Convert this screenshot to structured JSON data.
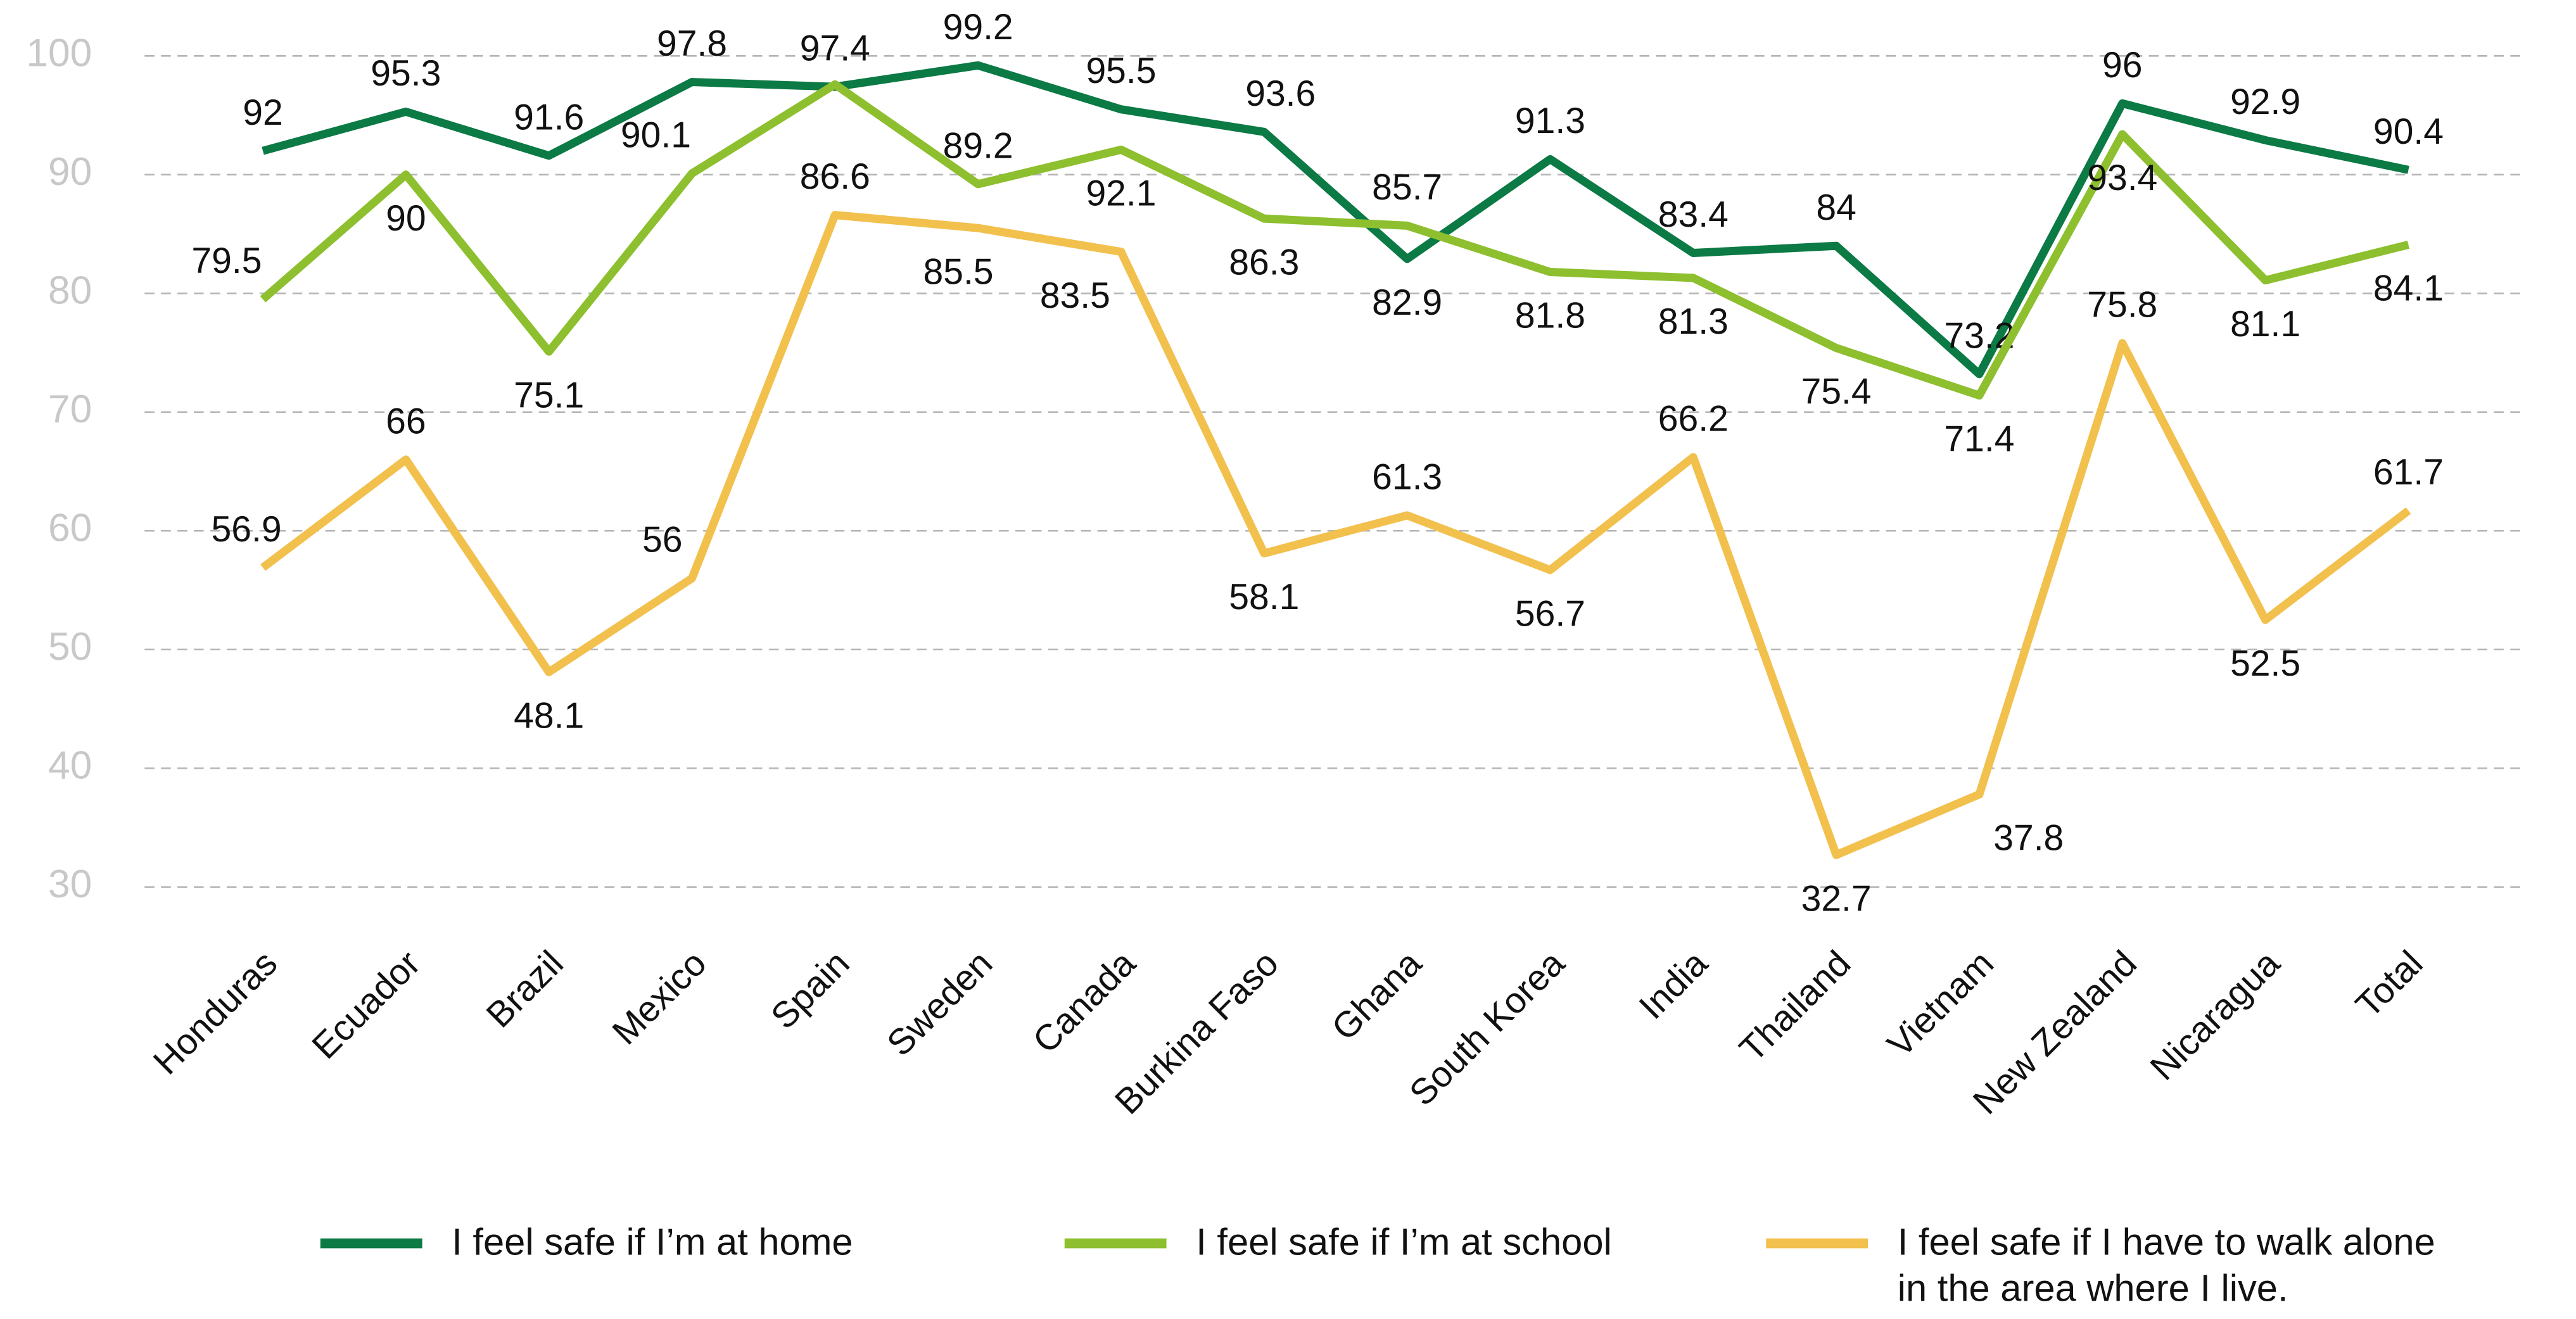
{
  "chart_data": {
    "type": "line",
    "categories": [
      "Honduras",
      "Ecuador",
      "Brazil",
      "Mexico",
      "Spain",
      "Sweden",
      "Canada",
      "Burkina Faso",
      "Ghana",
      "South Korea",
      "India",
      "Thailand",
      "Vietnam",
      "New Zealand",
      "Nicaragua",
      "Total"
    ],
    "series": [
      {
        "name": "I feel safe if I’m at home",
        "color": "#0b7a45",
        "values": [
          92,
          95.3,
          91.6,
          97.8,
          97.4,
          99.2,
          95.5,
          93.6,
          82.9,
          91.3,
          83.4,
          84,
          73.2,
          96,
          92.9,
          90.4
        ]
      },
      {
        "name": "I feel safe if I’m at school",
        "color": "#8dbf2e",
        "values": [
          79.5,
          90,
          75.1,
          90.1,
          97.6,
          89.2,
          92.1,
          86.3,
          85.7,
          81.8,
          81.3,
          75.4,
          71.4,
          93.4,
          81.1,
          84.1
        ],
        "value_labels": [
          "79.5",
          "90",
          "75.1",
          "90.1",
          null,
          "89.2",
          "92.1",
          "86.3",
          "85.7",
          "81.8",
          "81.3",
          "75.4",
          "71.4",
          "93.4",
          "81.1",
          "84.1"
        ]
      },
      {
        "name": "I feel safe if I have to walk alone in the area where I live.",
        "color": "#f2c04d",
        "values": [
          56.9,
          66,
          48.1,
          56,
          86.6,
          85.5,
          83.5,
          58.1,
          61.3,
          56.7,
          66.2,
          32.7,
          37.8,
          75.8,
          52.5,
          61.7
        ]
      }
    ],
    "ylim": [
      30,
      100
    ],
    "yticks": [
      30,
      40,
      50,
      60,
      70,
      80,
      90,
      100
    ],
    "grid": true,
    "legend": "bottom"
  }
}
